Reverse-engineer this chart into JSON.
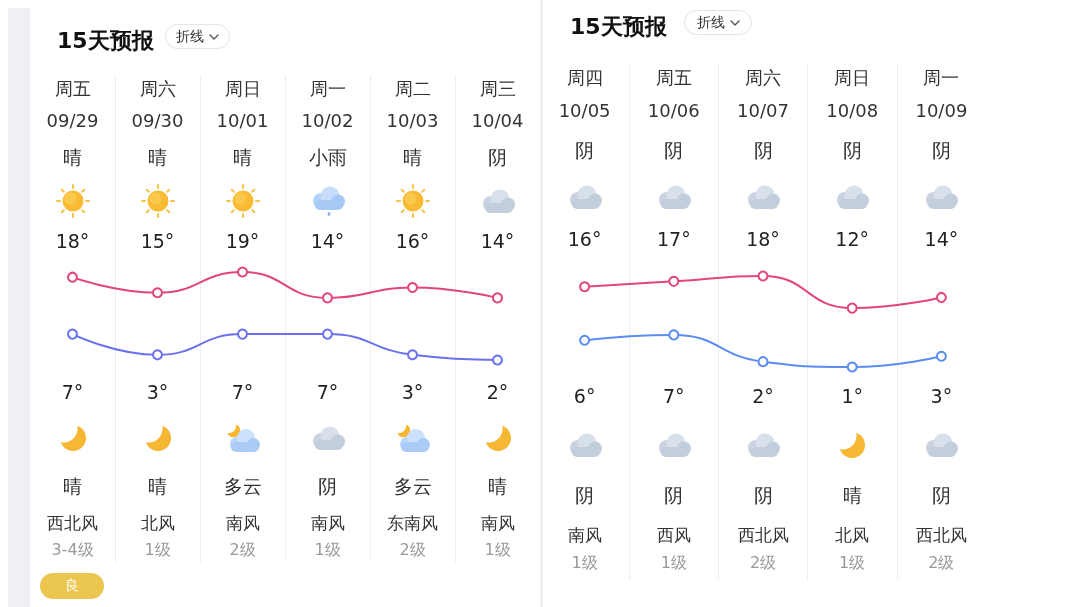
{
  "chart_data": [
    {
      "type": "line",
      "title": "15天预报",
      "categories": [
        "周五\n09/29",
        "周六\n09/30",
        "周日\n10/01",
        "周一\n10/02",
        "周二\n10/03",
        "周三\n10/04"
      ],
      "series": [
        {
          "color": "#e2457a",
          "values": [
            18,
            15,
            19,
            14,
            16,
            14
          ],
          "value_labels": [
            "18°",
            "15°",
            "19°",
            "14°",
            "16°",
            "14°"
          ]
        },
        {
          "color": "#6a70f0",
          "values": [
            7,
            3,
            7,
            7,
            3,
            2
          ],
          "value_labels": [
            "7°",
            "3°",
            "7°",
            "7°",
            "3°",
            "2°"
          ]
        }
      ],
      "marker": "circle",
      "grid": "x",
      "tick_labels": "x",
      "annotations": [
        "折线",
        "晴",
        "晴",
        "晴",
        "小雨",
        "晴",
        "阴",
        "晴",
        "晴",
        "多云",
        "阴",
        "多云",
        "晴",
        "西北风",
        "北风",
        "南风",
        "南风",
        "东南风",
        "南风",
        "3-4级",
        "1级",
        "2级",
        "1级",
        "2级",
        "1级",
        "良"
      ]
    },
    {
      "type": "line",
      "title": "15天预报",
      "categories": [
        "周四\n10/05",
        "周五\n10/06",
        "周六\n10/07",
        "周日\n10/08",
        "周一\n10/09"
      ],
      "series": [
        {
          "color": "#e2457a",
          "values": [
            16,
            17,
            18,
            12,
            14
          ],
          "value_labels": [
            "16°",
            "17°",
            "18°",
            "12°",
            "14°"
          ]
        },
        {
          "color": "#5a8cf2",
          "values": [
            6,
            7,
            2,
            1,
            3
          ],
          "value_labels": [
            "6°",
            "7°",
            "2°",
            "1°",
            "3°"
          ]
        }
      ],
      "marker": "circle",
      "grid": "x",
      "tick_labels": "x",
      "annotations": [
        "折线",
        "阴",
        "阴",
        "阴",
        "阴",
        "阴",
        "阴",
        "阴",
        "阴",
        "晴",
        "阴",
        "南风",
        "西风",
        "西北风",
        "北风",
        "西北风",
        "1级",
        "1级",
        "2级",
        "1级",
        "2级"
      ]
    }
  ]
}
